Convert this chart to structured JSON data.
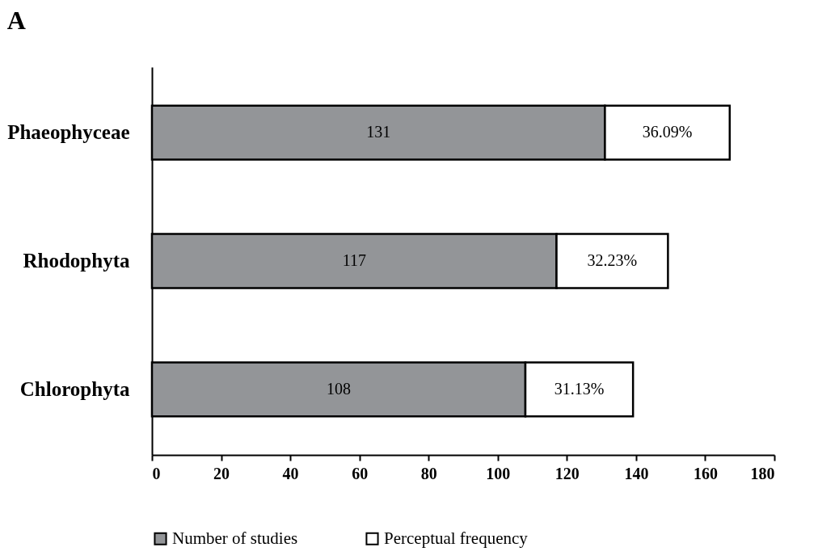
{
  "chart_data": {
    "type": "bar",
    "title": "A",
    "orientation": "horizontal",
    "stacked": true,
    "categories": [
      "Phaeophyceae",
      "Rhodophyta",
      "Chlorophyta"
    ],
    "series": [
      {
        "name": "Number of studies",
        "color": "#939598",
        "values": [
          131,
          117,
          108
        ],
        "value_labels": [
          "131",
          "117",
          "108"
        ]
      },
      {
        "name": "Perceptual frequency",
        "color": "#ffffff",
        "values": [
          36.09,
          32.23,
          31.13
        ],
        "value_labels": [
          "36.09%",
          "32.23%",
          "31.13%"
        ]
      }
    ],
    "xlim": [
      0,
      180
    ],
    "xticks": [
      0,
      20,
      40,
      60,
      80,
      100,
      120,
      140,
      160,
      180
    ],
    "grid": false,
    "legend": "bottom"
  }
}
